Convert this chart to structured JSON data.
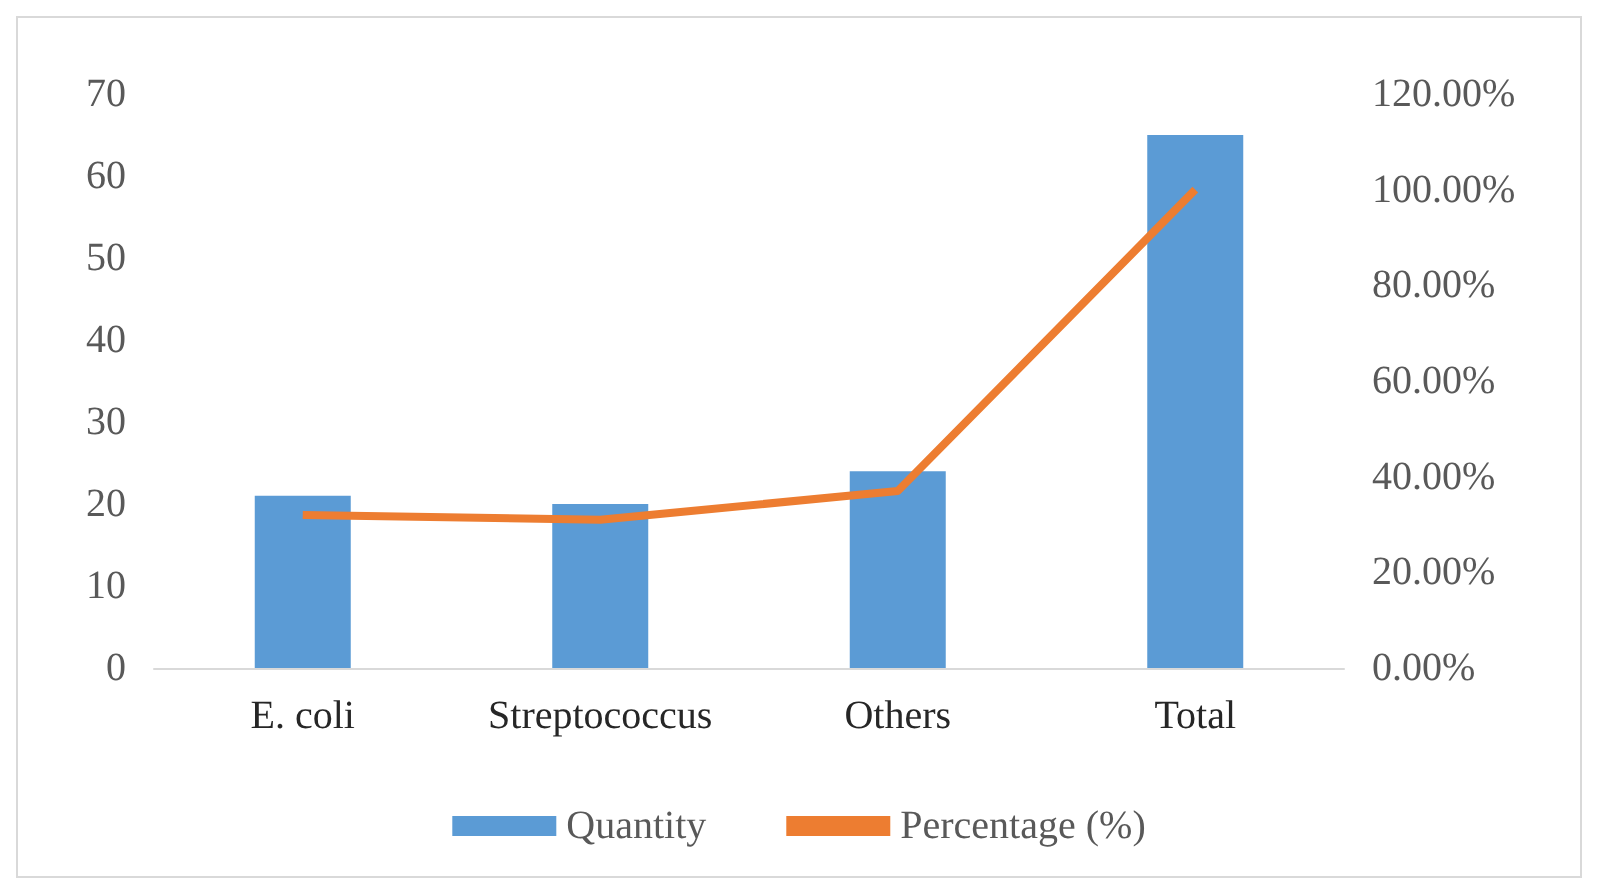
{
  "chart_data": {
    "type": "bar",
    "categories": [
      "E. coli",
      "Streptococcus",
      "Others",
      "Total"
    ],
    "series": [
      {
        "name": "Quantity",
        "color": "#5b9bd5",
        "values": [
          21,
          20,
          24,
          65
        ]
      },
      {
        "name": "Percentage (%)",
        "type": "line",
        "axis": "y2",
        "color": "#ed7d31",
        "values": [
          32,
          31,
          37,
          100
        ]
      }
    ],
    "ylim": [
      0,
      70
    ],
    "yticks": [
      0,
      10,
      20,
      30,
      40,
      50,
      60,
      70
    ],
    "y2lim": [
      0,
      120
    ],
    "y2ticks": [
      {
        "value": 0,
        "label": "0.00%"
      },
      {
        "value": 20,
        "label": "20.00%"
      },
      {
        "value": 40,
        "label": "40.00%"
      },
      {
        "value": 60,
        "label": "60.00%"
      },
      {
        "value": 80,
        "label": "80.00%"
      },
      {
        "value": 100,
        "label": "100.00%"
      },
      {
        "value": 120,
        "label": "120.00%"
      }
    ],
    "grid": false,
    "legend": "bottom",
    "marker": "none"
  }
}
